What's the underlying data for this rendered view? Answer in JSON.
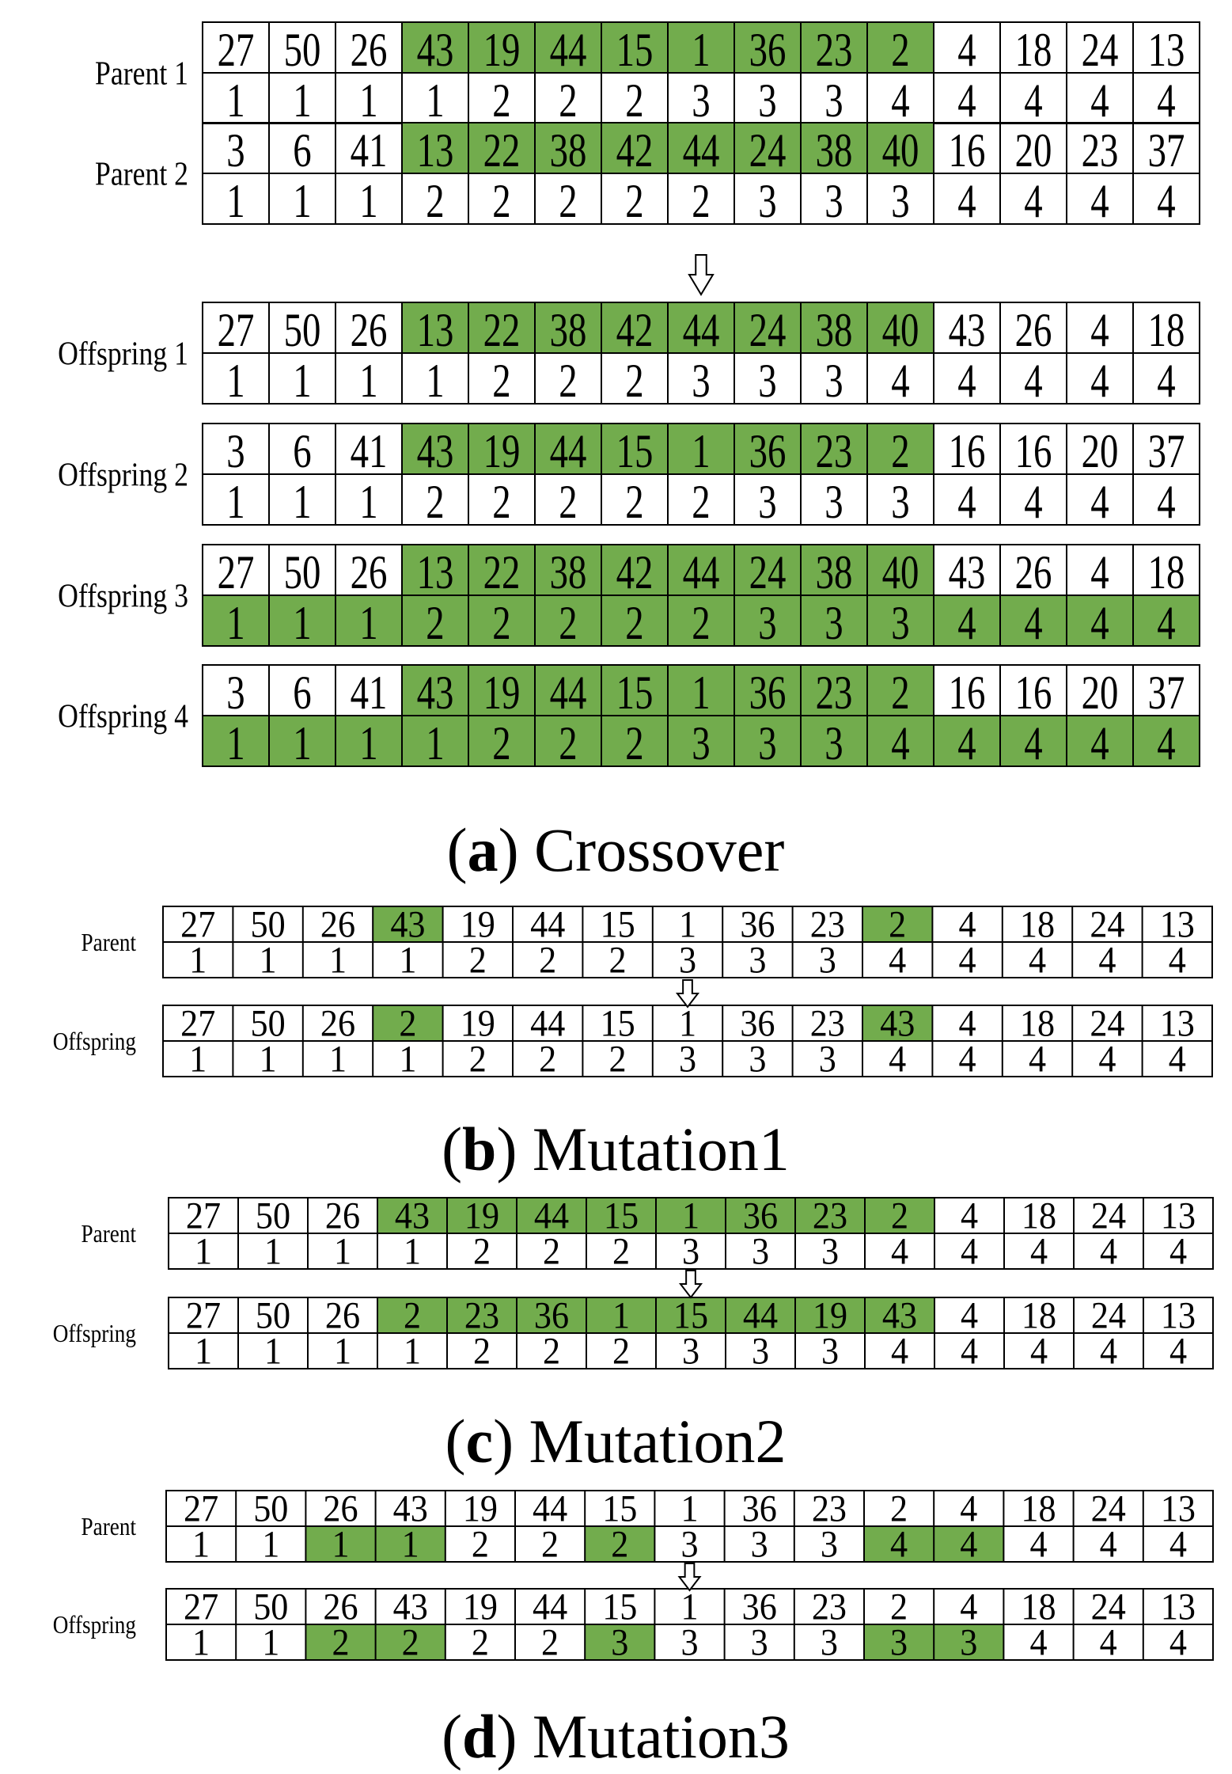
{
  "colors": {
    "highlight": "#72ac4d",
    "border": "#000000",
    "background": "#ffffff"
  },
  "sections": [
    {
      "id": "crossover",
      "caption_letter": "a",
      "caption_text": "Crossover",
      "groups": [
        [
          {
            "label": "Parent 1",
            "top": [
              27,
              50,
              26,
              43,
              19,
              44,
              15,
              1,
              36,
              23,
              2,
              4,
              18,
              24,
              13
            ],
            "bottom": [
              1,
              1,
              1,
              1,
              2,
              2,
              2,
              3,
              3,
              3,
              4,
              4,
              4,
              4,
              4
            ],
            "top_hl": [
              3,
              4,
              5,
              6,
              7,
              8,
              9,
              10
            ],
            "bottom_hl": []
          },
          {
            "label": "Parent 2",
            "top": [
              3,
              6,
              41,
              13,
              22,
              38,
              42,
              44,
              24,
              38,
              40,
              16,
              20,
              23,
              37
            ],
            "bottom": [
              1,
              1,
              1,
              2,
              2,
              2,
              2,
              2,
              3,
              3,
              3,
              4,
              4,
              4,
              4
            ],
            "top_hl": [
              3,
              4,
              5,
              6,
              7,
              8,
              9,
              10
            ],
            "bottom_hl": []
          }
        ],
        [
          {
            "label": "Offspring 1",
            "top": [
              27,
              50,
              26,
              13,
              22,
              38,
              42,
              44,
              24,
              38,
              40,
              43,
              26,
              4,
              18
            ],
            "bottom": [
              1,
              1,
              1,
              1,
              2,
              2,
              2,
              3,
              3,
              3,
              4,
              4,
              4,
              4,
              4
            ],
            "top_hl": [
              3,
              4,
              5,
              6,
              7,
              8,
              9,
              10
            ],
            "bottom_hl": []
          },
          {
            "label": "Offspring 2",
            "top": [
              3,
              6,
              41,
              43,
              19,
              44,
              15,
              1,
              36,
              23,
              2,
              16,
              16,
              20,
              37
            ],
            "bottom": [
              1,
              1,
              1,
              2,
              2,
              2,
              2,
              2,
              3,
              3,
              3,
              4,
              4,
              4,
              4
            ],
            "top_hl": [
              3,
              4,
              5,
              6,
              7,
              8,
              9,
              10
            ],
            "bottom_hl": []
          },
          {
            "label": "Offspring 3",
            "top": [
              27,
              50,
              26,
              13,
              22,
              38,
              42,
              44,
              24,
              38,
              40,
              43,
              26,
              4,
              18
            ],
            "bottom": [
              1,
              1,
              1,
              2,
              2,
              2,
              2,
              2,
              3,
              3,
              3,
              4,
              4,
              4,
              4
            ],
            "top_hl": [
              3,
              4,
              5,
              6,
              7,
              8,
              9,
              10
            ],
            "bottom_hl": [
              0,
              1,
              2,
              3,
              4,
              5,
              6,
              7,
              8,
              9,
              10,
              11,
              12,
              13,
              14
            ]
          },
          {
            "label": "Offspring 4",
            "top": [
              3,
              6,
              41,
              43,
              19,
              44,
              15,
              1,
              36,
              23,
              2,
              16,
              16,
              20,
              37
            ],
            "bottom": [
              1,
              1,
              1,
              1,
              2,
              2,
              2,
              3,
              3,
              3,
              4,
              4,
              4,
              4,
              4
            ],
            "top_hl": [
              3,
              4,
              5,
              6,
              7,
              8,
              9,
              10
            ],
            "bottom_hl": [
              0,
              1,
              2,
              3,
              4,
              5,
              6,
              7,
              8,
              9,
              10,
              11,
              12,
              13,
              14
            ]
          }
        ]
      ]
    },
    {
      "id": "mutation1",
      "caption_letter": "b",
      "caption_text": "Mutation1",
      "groups": [
        [
          {
            "label": "Parent",
            "top": [
              27,
              50,
              26,
              43,
              19,
              44,
              15,
              1,
              36,
              23,
              2,
              4,
              18,
              24,
              13
            ],
            "bottom": [
              1,
              1,
              1,
              1,
              2,
              2,
              2,
              3,
              3,
              3,
              4,
              4,
              4,
              4,
              4
            ],
            "top_hl": [
              3,
              10
            ],
            "bottom_hl": []
          }
        ],
        [
          {
            "label": "Offspring",
            "top": [
              27,
              50,
              26,
              2,
              19,
              44,
              15,
              1,
              36,
              23,
              43,
              4,
              18,
              24,
              13
            ],
            "bottom": [
              1,
              1,
              1,
              1,
              2,
              2,
              2,
              3,
              3,
              3,
              4,
              4,
              4,
              4,
              4
            ],
            "top_hl": [
              3,
              10
            ],
            "bottom_hl": []
          }
        ]
      ]
    },
    {
      "id": "mutation2",
      "caption_letter": "c",
      "caption_text": "Mutation2",
      "groups": [
        [
          {
            "label": "Parent",
            "top": [
              27,
              50,
              26,
              43,
              19,
              44,
              15,
              1,
              36,
              23,
              2,
              4,
              18,
              24,
              13
            ],
            "bottom": [
              1,
              1,
              1,
              1,
              2,
              2,
              2,
              3,
              3,
              3,
              4,
              4,
              4,
              4,
              4
            ],
            "top_hl": [
              3,
              4,
              5,
              6,
              7,
              8,
              9,
              10
            ],
            "bottom_hl": []
          }
        ],
        [
          {
            "label": "Offspring",
            "top": [
              27,
              50,
              26,
              2,
              23,
              36,
              1,
              15,
              44,
              19,
              43,
              4,
              18,
              24,
              13
            ],
            "bottom": [
              1,
              1,
              1,
              1,
              2,
              2,
              2,
              3,
              3,
              3,
              4,
              4,
              4,
              4,
              4
            ],
            "top_hl": [
              3,
              4,
              5,
              6,
              7,
              8,
              9,
              10
            ],
            "bottom_hl": []
          }
        ]
      ]
    },
    {
      "id": "mutation3",
      "caption_letter": "d",
      "caption_text": "Mutation3",
      "groups": [
        [
          {
            "label": "Parent",
            "top": [
              27,
              50,
              26,
              43,
              19,
              44,
              15,
              1,
              36,
              23,
              2,
              4,
              18,
              24,
              13
            ],
            "bottom": [
              1,
              1,
              1,
              1,
              2,
              2,
              2,
              3,
              3,
              3,
              4,
              4,
              4,
              4,
              4
            ],
            "top_hl": [],
            "bottom_hl": [
              2,
              3,
              6,
              10,
              11
            ]
          }
        ],
        [
          {
            "label": "Offspring",
            "top": [
              27,
              50,
              26,
              43,
              19,
              44,
              15,
              1,
              36,
              23,
              2,
              4,
              18,
              24,
              13
            ],
            "bottom": [
              1,
              1,
              2,
              2,
              2,
              2,
              3,
              3,
              3,
              3,
              3,
              3,
              4,
              4,
              4
            ],
            "top_hl": [],
            "bottom_hl": [
              2,
              3,
              6,
              10,
              11
            ]
          }
        ]
      ]
    }
  ]
}
